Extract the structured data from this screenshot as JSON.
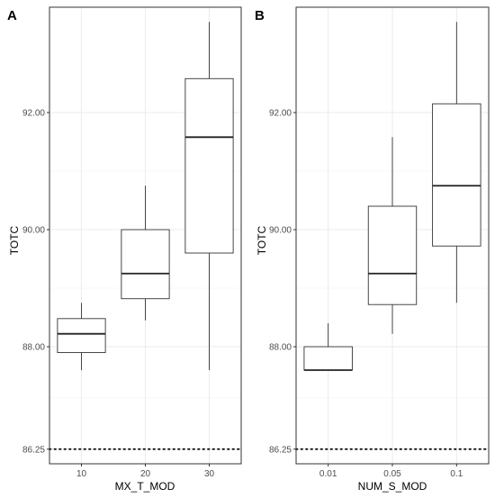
{
  "chart_data": [
    {
      "type": "box",
      "panel_label": "A",
      "xlabel": "MX_T_MOD",
      "ylabel": "TOTC",
      "categories": [
        "10",
        "20",
        "30"
      ],
      "y_ticks": [
        86.25,
        88.0,
        90.0,
        92.0
      ],
      "y_tick_labels": [
        "86.25",
        "88.00",
        "90.00",
        "92.00"
      ],
      "ylim": [
        86.0,
        93.8
      ],
      "boxes": [
        {
          "category": "10",
          "min": 87.6,
          "q1": 87.9,
          "median": 88.22,
          "q3": 88.48,
          "max": 88.75
        },
        {
          "category": "20",
          "min": 88.45,
          "q1": 88.82,
          "median": 89.25,
          "q3": 90.0,
          "max": 90.75
        },
        {
          "category": "30",
          "min": 87.6,
          "q1": 89.6,
          "median": 91.58,
          "q3": 92.58,
          "max": 93.55
        }
      ],
      "reference_line": {
        "y": 86.25,
        "style": "dotted"
      },
      "grid": true
    },
    {
      "type": "box",
      "panel_label": "B",
      "xlabel": "NUM_S_MOD",
      "ylabel": "TOTC",
      "categories": [
        "0.01",
        "0.05",
        "0.1"
      ],
      "y_ticks": [
        86.25,
        88.0,
        90.0,
        92.0
      ],
      "y_tick_labels": [
        "86.25",
        "88.00",
        "90.00",
        "92.00"
      ],
      "ylim": [
        86.0,
        93.8
      ],
      "boxes": [
        {
          "category": "0.01",
          "min": 87.6,
          "q1": 87.6,
          "median": 87.6,
          "q3": 88.0,
          "max": 88.4
        },
        {
          "category": "0.05",
          "min": 88.22,
          "q1": 88.72,
          "median": 89.25,
          "q3": 90.4,
          "max": 91.58
        },
        {
          "category": "0.1",
          "min": 88.75,
          "q1": 89.72,
          "median": 90.75,
          "q3": 92.15,
          "max": 93.55
        }
      ],
      "reference_line": {
        "y": 86.25,
        "style": "dotted"
      },
      "grid": true
    }
  ]
}
